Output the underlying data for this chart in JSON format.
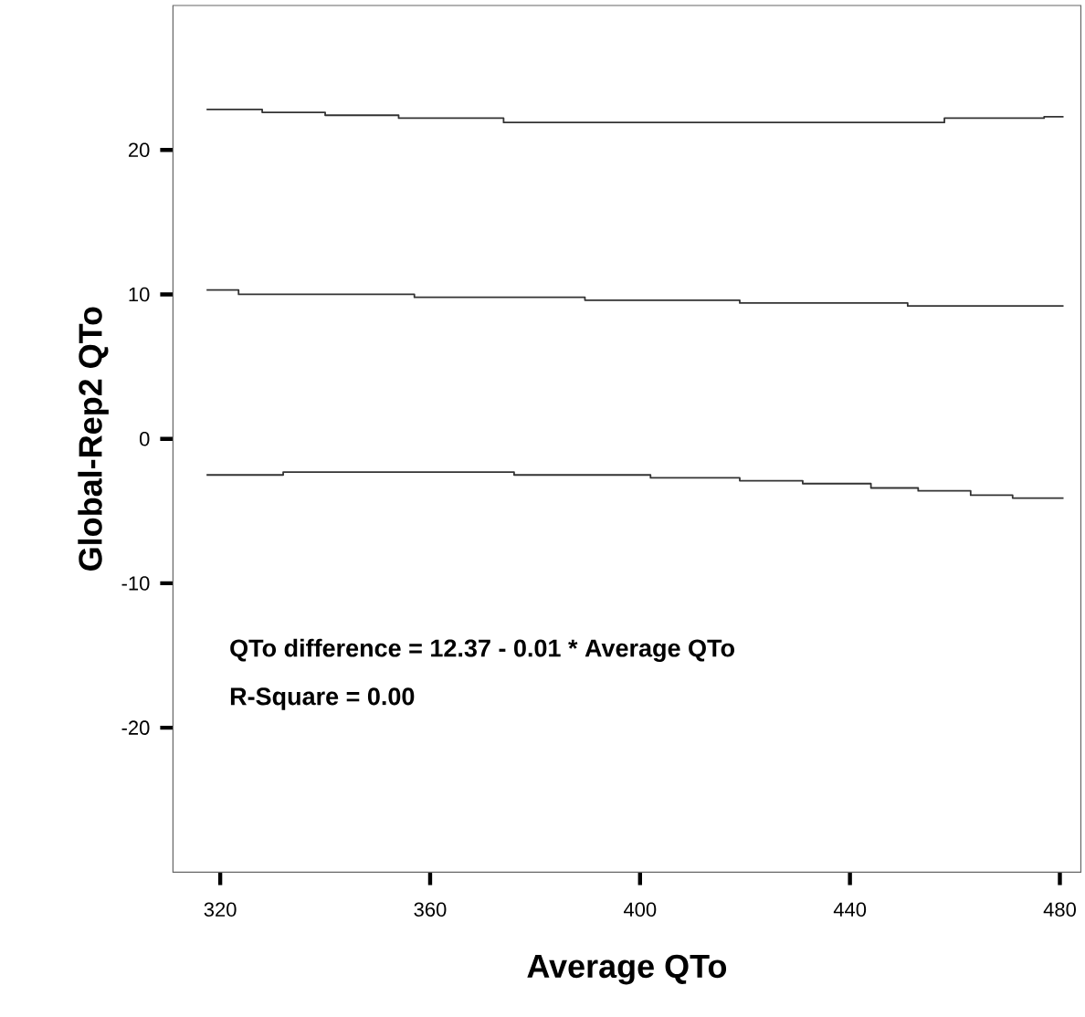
{
  "chart_data": {
    "type": "line",
    "xlabel": "Average QTo",
    "ylabel": "Global-Rep2 QTo",
    "xlim": [
      311,
      484
    ],
    "ylim": [
      -30,
      30
    ],
    "xticks": [
      320,
      360,
      400,
      440,
      480
    ],
    "yticks": [
      -20,
      -10,
      0,
      10,
      20
    ],
    "annotations": [
      "QTo difference = 12.37 -  0.01 * Average QTo",
      "R-Square = 0.00"
    ],
    "series": [
      {
        "color": "#333333",
        "x": [
          317.4,
          328,
          328,
          340,
          340,
          354,
          354,
          374,
          374,
          458,
          458,
          477,
          477,
          480.7
        ],
        "values": [
          22.8,
          22.8,
          22.6,
          22.6,
          22.4,
          22.4,
          22.2,
          22.2,
          21.9,
          21.9,
          22.2,
          22.2,
          22.3,
          22.3
        ]
      },
      {
        "color": "#333333",
        "x": [
          317.4,
          323.5,
          323.5,
          357,
          357,
          389.5,
          389.5,
          419,
          419,
          451,
          451,
          480.7
        ],
        "values": [
          10.3,
          10.3,
          10.0,
          10.0,
          9.8,
          9.8,
          9.6,
          9.6,
          9.4,
          9.4,
          9.2,
          9.2
        ]
      },
      {
        "color": "#333333",
        "x": [
          317.4,
          332,
          332,
          376,
          376,
          402,
          402,
          419,
          419,
          431,
          431,
          444,
          444,
          453,
          453,
          463,
          463,
          471,
          471,
          480.7
        ],
        "values": [
          -2.5,
          -2.5,
          -2.3,
          -2.3,
          -2.5,
          -2.5,
          -2.7,
          -2.7,
          -2.9,
          -2.9,
          -3.1,
          -3.1,
          -3.4,
          -3.4,
          -3.6,
          -3.6,
          -3.9,
          -3.9,
          -4.1,
          -4.1
        ]
      }
    ]
  }
}
